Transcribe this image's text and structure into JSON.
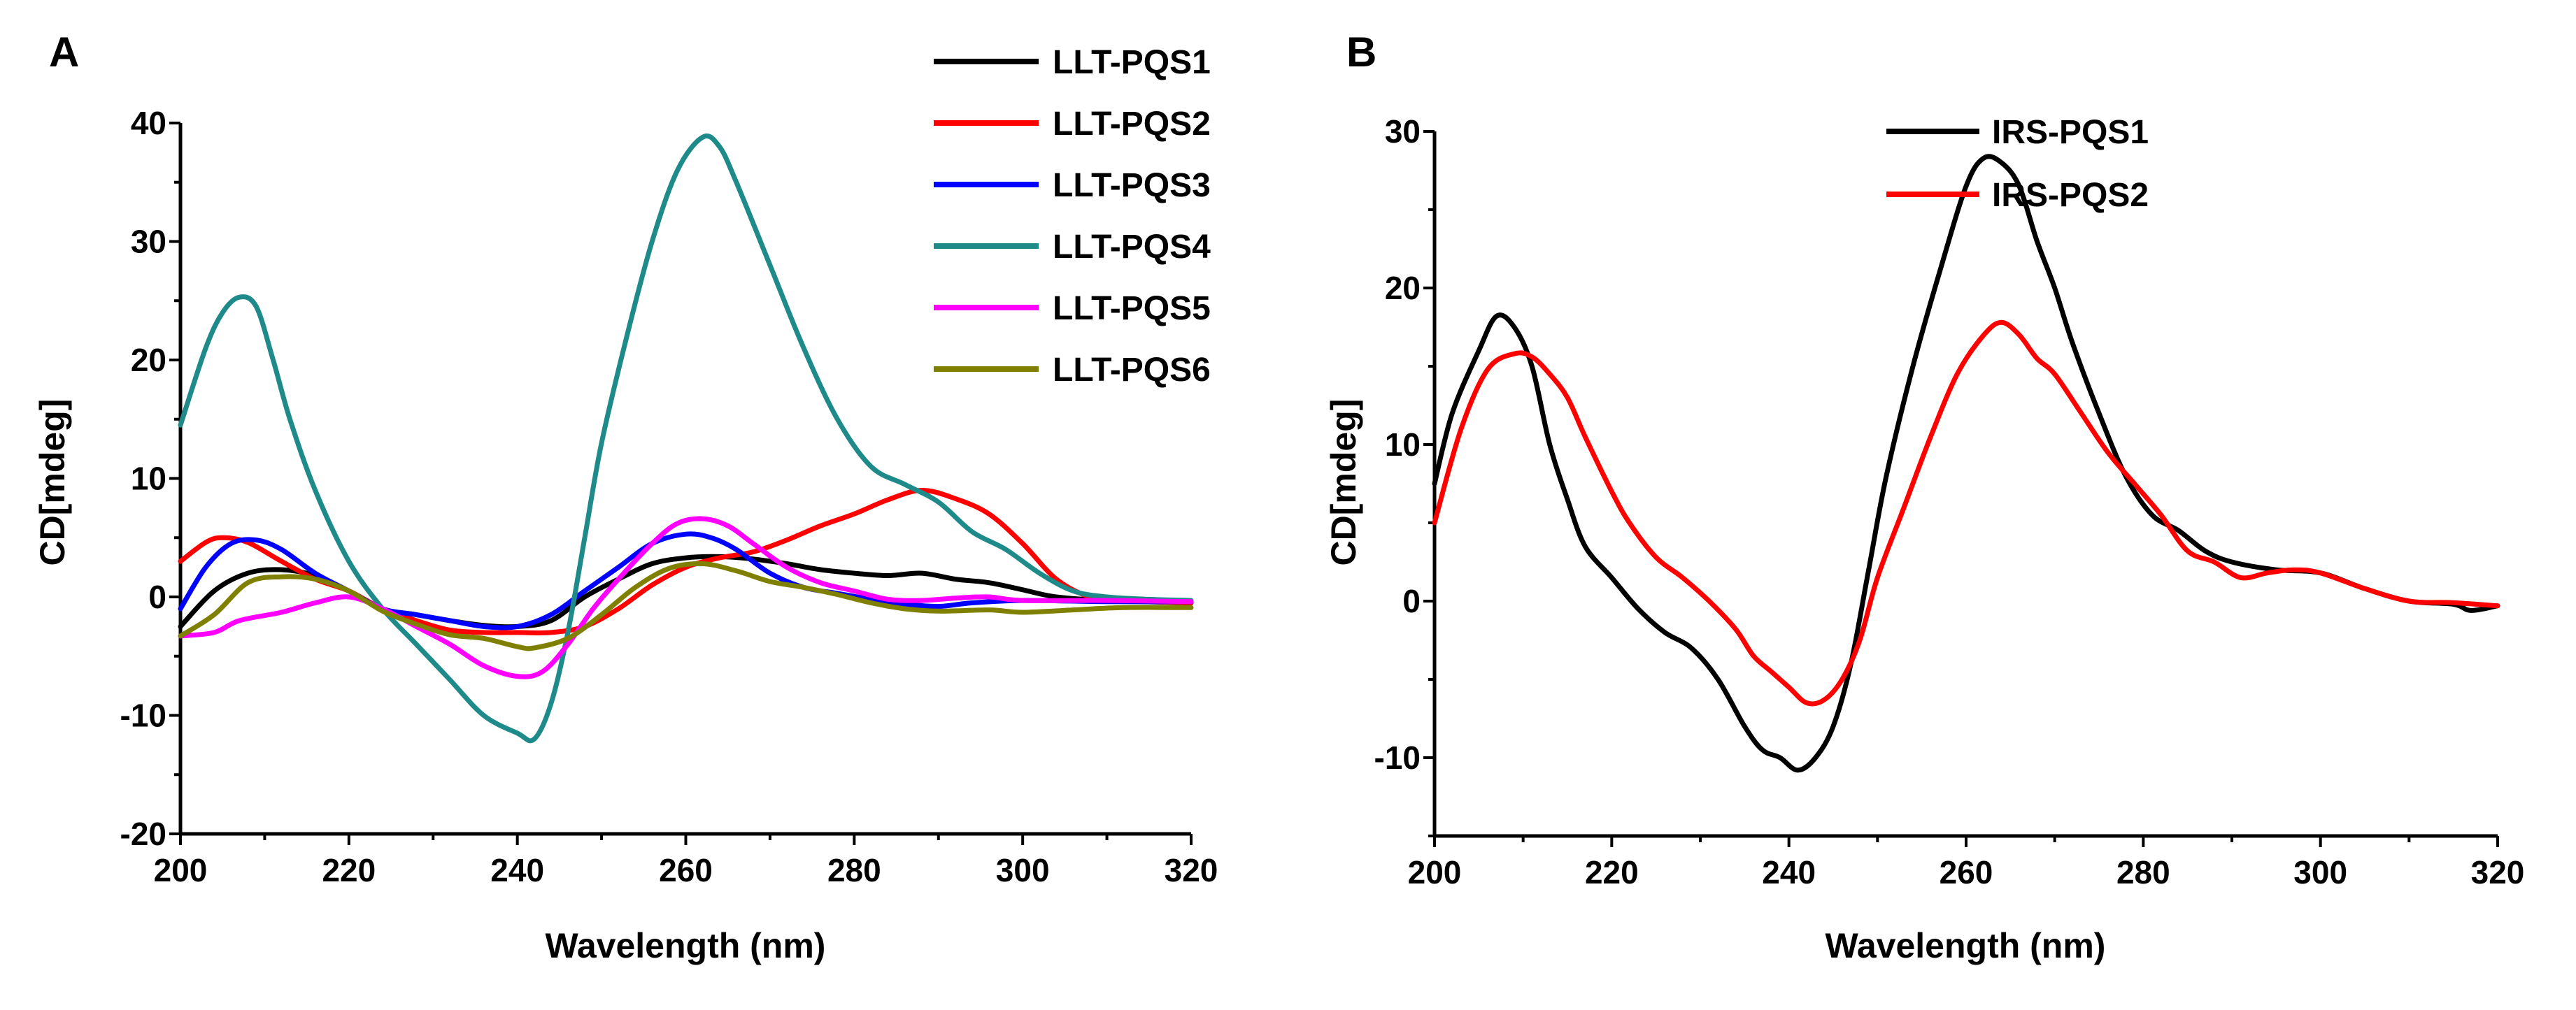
{
  "chart_data": [
    {
      "panel_label": "A",
      "type": "line",
      "xlabel": "Wavelength (nm)",
      "ylabel": "CD[mdeg]",
      "xlim": [
        200,
        320
      ],
      "ylim": [
        -20,
        40
      ],
      "xticks": [
        200,
        220,
        240,
        260,
        280,
        300,
        320
      ],
      "yticks": [
        -20,
        -10,
        0,
        10,
        20,
        30,
        40
      ],
      "grid": false,
      "legend_position": "top-right",
      "series": [
        {
          "name": "LLT-PQS1",
          "color": "#000000",
          "x": [
            200,
            204,
            208,
            212,
            216,
            220,
            224,
            228,
            232,
            236,
            240,
            244,
            248,
            252,
            256,
            260,
            264,
            268,
            272,
            276,
            280,
            284,
            288,
            292,
            296,
            300,
            304,
            310,
            320
          ],
          "y": [
            -2.5,
            0.5,
            2,
            2.3,
            1.8,
            0.5,
            -1,
            -1.5,
            -2,
            -2.4,
            -2.5,
            -2,
            0,
            1.5,
            2.8,
            3.3,
            3.4,
            3.2,
            2.8,
            2.3,
            2,
            1.8,
            2,
            1.5,
            1.2,
            0.6,
            0,
            -0.3,
            -0.5
          ]
        },
        {
          "name": "LLT-PQS2",
          "color": "#ff0000",
          "x": [
            200,
            203,
            205,
            208,
            212,
            216,
            220,
            224,
            228,
            232,
            236,
            240,
            244,
            248,
            252,
            256,
            260,
            264,
            268,
            272,
            276,
            280,
            284,
            288,
            292,
            296,
            300,
            304,
            308,
            312,
            320
          ],
          "y": [
            3,
            4.6,
            5,
            4.6,
            3,
            1.5,
            0.5,
            -1,
            -2,
            -2.8,
            -3,
            -3,
            -3,
            -2.5,
            -1,
            1,
            2.5,
            3.3,
            3.8,
            4.8,
            6,
            7,
            8.2,
            9,
            8.3,
            7,
            4.5,
            1.5,
            0,
            -0.3,
            -0.5
          ]
        },
        {
          "name": "LLT-PQS3",
          "color": "#0000ff",
          "x": [
            200,
            203,
            206,
            209,
            212,
            216,
            220,
            224,
            228,
            232,
            236,
            240,
            244,
            248,
            252,
            256,
            260,
            263,
            266,
            270,
            274,
            278,
            282,
            286,
            290,
            294,
            300,
            310,
            320
          ],
          "y": [
            -1,
            2.5,
            4.5,
            4.8,
            4,
            2,
            0.5,
            -1,
            -1.5,
            -2,
            -2.5,
            -2.5,
            -1.5,
            0.5,
            2.5,
            4.5,
            5.3,
            5,
            4,
            2,
            0.8,
            0.3,
            -0.2,
            -0.6,
            -0.8,
            -0.5,
            -0.3,
            -0.4,
            -0.4
          ]
        },
        {
          "name": "LLT-PQS4",
          "color": "#1f8a8a",
          "x": [
            200,
            203,
            205,
            207,
            209,
            211,
            213,
            216,
            220,
            224,
            228,
            232,
            236,
            240,
            242,
            244,
            246,
            248,
            250,
            253,
            256,
            259,
            262,
            264,
            266,
            270,
            274,
            278,
            282,
            286,
            290,
            294,
            298,
            302,
            306,
            310,
            315,
            320
          ],
          "y": [
            14.5,
            21,
            24,
            25.3,
            24.5,
            20,
            15,
            9,
            3,
            -1,
            -4,
            -7,
            -10,
            -11.5,
            -12,
            -9,
            -3,
            5,
            13,
            22,
            30,
            36,
            38.8,
            38,
            35,
            28,
            21,
            15,
            11,
            9.5,
            8,
            5.5,
            4,
            2,
            0.5,
            0,
            -0.2,
            -0.3
          ]
        },
        {
          "name": "LLT-PQS5",
          "color": "#ff00ff",
          "x": [
            200,
            204,
            207,
            212,
            216,
            220,
            224,
            228,
            232,
            236,
            240,
            243,
            246,
            249,
            252,
            256,
            259,
            262,
            265,
            268,
            272,
            276,
            280,
            284,
            288,
            292,
            296,
            300,
            310,
            320
          ],
          "y": [
            -3.3,
            -3,
            -2,
            -1.3,
            -0.5,
            0,
            -1,
            -2.5,
            -4,
            -5.8,
            -6.7,
            -6.3,
            -4,
            -1,
            1.5,
            4.5,
            6.2,
            6.6,
            6,
            4.5,
            2.5,
            1.2,
            0.5,
            -0.2,
            -0.3,
            -0.1,
            0,
            -0.3,
            -0.3,
            -0.4
          ]
        },
        {
          "name": "LLT-PQS6",
          "color": "#808000",
          "x": [
            200,
            204,
            208,
            212,
            216,
            220,
            224,
            228,
            232,
            236,
            240,
            242,
            246,
            250,
            254,
            258,
            262,
            266,
            270,
            274,
            278,
            282,
            286,
            290,
            296,
            300,
            306,
            312,
            320
          ],
          "y": [
            -3.3,
            -1.5,
            1.2,
            1.7,
            1.5,
            0.5,
            -1.2,
            -2.3,
            -3.2,
            -3.5,
            -4.2,
            -4.3,
            -3.5,
            -1.5,
            0.8,
            2.4,
            2.8,
            2.2,
            1.3,
            0.8,
            0.2,
            -0.5,
            -1,
            -1.2,
            -1.1,
            -1.3,
            -1.1,
            -0.9,
            -0.9
          ]
        }
      ]
    },
    {
      "panel_label": "B",
      "type": "line",
      "xlabel": "Wavelength (nm)",
      "ylabel": "CD[mdeg]",
      "xlim": [
        200,
        320
      ],
      "ylim": [
        -15,
        30
      ],
      "xticks": [
        200,
        220,
        240,
        260,
        280,
        300,
        320
      ],
      "yticks": [
        -10,
        0,
        10,
        20,
        30
      ],
      "grid": false,
      "legend_position": "top-right",
      "series": [
        {
          "name": "IRS-PQS1",
          "color": "#000000",
          "x": [
            200,
            202,
            205,
            207,
            209,
            211,
            213,
            215,
            217,
            220,
            223,
            226,
            229,
            232,
            235,
            237,
            239,
            241,
            243,
            245,
            247,
            249,
            251,
            254,
            257,
            260,
            262,
            264,
            266,
            268,
            270,
            272,
            275,
            278,
            281,
            284,
            287,
            290,
            295,
            300,
            305,
            310,
            315,
            317,
            320
          ],
          "y": [
            7.5,
            12,
            16,
            18.2,
            17.5,
            15,
            10,
            6.5,
            3.5,
            1.5,
            -0.5,
            -2,
            -3,
            -5,
            -8,
            -9.5,
            -10,
            -10.8,
            -10,
            -8,
            -4,
            2,
            8,
            15,
            21,
            26.5,
            28.3,
            28,
            26.5,
            23,
            20,
            16.5,
            12,
            8,
            5.5,
            4.5,
            3.2,
            2.5,
            2,
            1.8,
            0.8,
            0,
            -0.2,
            -0.6,
            -0.3
          ]
        },
        {
          "name": "IRS-PQS2",
          "color": "#ff0000",
          "x": [
            200,
            203,
            206,
            209,
            211,
            213,
            215,
            217,
            220,
            222,
            225,
            228,
            231,
            234,
            236,
            238,
            240,
            242,
            244,
            246,
            248,
            250,
            253,
            256,
            259,
            262,
            264,
            266,
            268,
            270,
            273,
            276,
            279,
            282,
            285,
            288,
            291,
            294,
            297,
            300,
            305,
            310,
            315,
            320
          ],
          "y": [
            5,
            11,
            14.8,
            15.8,
            15.6,
            14.5,
            13,
            10.5,
            7,
            5,
            2.8,
            1.5,
            0,
            -1.8,
            -3.5,
            -4.5,
            -5.5,
            -6.5,
            -6.3,
            -5,
            -2.5,
            1.5,
            6,
            10.5,
            14.5,
            17,
            17.8,
            17,
            15.5,
            14.5,
            12,
            9.5,
            7.5,
            5.5,
            3.2,
            2.5,
            1.5,
            1.8,
            2,
            1.8,
            0.8,
            0,
            -0.1,
            -0.3
          ]
        }
      ]
    }
  ]
}
